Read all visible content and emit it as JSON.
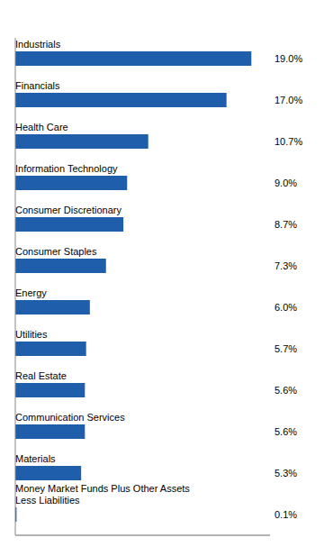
{
  "chart_data": {
    "type": "bar",
    "orientation": "horizontal",
    "categories": [
      "Industrials",
      "Financials",
      "Health Care",
      "Information Technology",
      "Consumer Discretionary",
      "Consumer Staples",
      "Energy",
      "Utilities",
      "Real Estate",
      "Communication Services",
      "Materials",
      "Money Market Funds Plus Other Assets\nLess Liabilities"
    ],
    "values": [
      19.0,
      17.0,
      10.7,
      9.0,
      8.7,
      7.3,
      6.0,
      5.7,
      5.6,
      5.6,
      5.3,
      0.1
    ],
    "value_labels": [
      "19.0%",
      "17.0%",
      "10.7%",
      "9.0%",
      "8.7%",
      "7.3%",
      "6.0%",
      "5.7%",
      "5.6%",
      "5.6%",
      "5.3%",
      "0.1%"
    ],
    "data_labels": true,
    "color": "#1F5EAA",
    "xlim": [
      0,
      20.5
    ],
    "grid": false,
    "tick_labels": false
  }
}
